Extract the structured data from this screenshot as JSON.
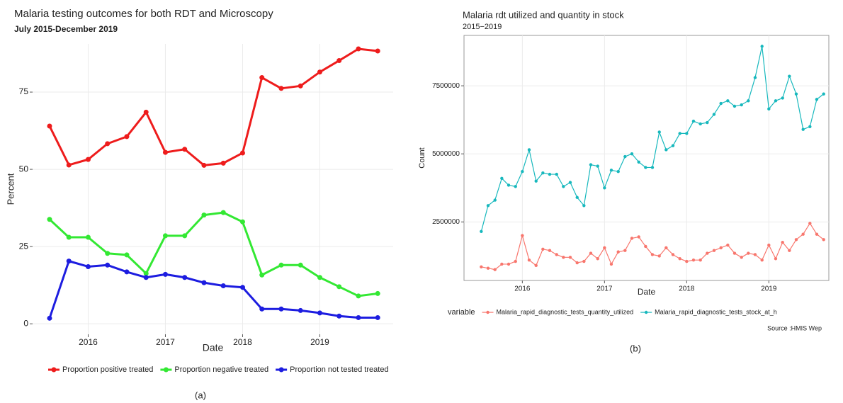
{
  "chart_data": [
    {
      "type": "line",
      "title": "Malaria testing outcomes for both RDT and Microscopy",
      "subtitle": "July 2015-December 2019",
      "xlabel": "Date",
      "ylabel": "Percent",
      "caption": "(a)",
      "legend": "bottom",
      "grid": true,
      "x": [
        2015.5,
        2015.75,
        2016,
        2016.25,
        2016.5,
        2016.75,
        2017,
        2017.25,
        2017.5,
        2017.75,
        2018,
        2018.25,
        2018.5,
        2018.75,
        2019,
        2019.25,
        2019.5,
        2019.75
      ],
      "xlim": [
        2015.28,
        2019.95
      ],
      "xticks": [
        2016,
        2017,
        2018,
        2019
      ],
      "ylim": [
        -3.4,
        90.6
      ],
      "yticks": [
        0,
        25,
        50,
        75
      ],
      "series": [
        {
          "name": "Proportion positive treated",
          "color": "#ee1c1c",
          "values": [
            64,
            51.4,
            53.2,
            58.3,
            60.6,
            68.5,
            55.5,
            56.5,
            51.3,
            52,
            55.3,
            79.7,
            76.2,
            77,
            81.5,
            85.2,
            89,
            88.3
          ]
        },
        {
          "name": "Proportion negative treated",
          "color": "#33e833",
          "values": [
            33.8,
            28,
            28,
            22.8,
            22.3,
            16.3,
            28.5,
            28.5,
            35.2,
            36,
            33,
            15.8,
            19,
            19,
            15,
            12,
            9,
            9.8
          ]
        },
        {
          "name": "Proportion not tested treated",
          "color": "#1d1de0",
          "values": [
            1.8,
            20.3,
            18.5,
            19,
            16.8,
            15,
            16,
            15,
            13.3,
            12.3,
            11.8,
            4.8,
            4.8,
            4.3,
            3.5,
            2.5,
            2,
            2
          ]
        }
      ]
    },
    {
      "type": "line",
      "title": "Malaria rdt utilized and quantity in stock",
      "subtitle": "2015−2019",
      "xlabel": "Date",
      "ylabel": "Count",
      "caption": "(b)",
      "source": "Source :HMIS Wep",
      "legend": "bottom",
      "legend_title": "variable",
      "grid": true,
      "x": [
        2015.5,
        2015.583,
        2015.667,
        2015.75,
        2015.833,
        2015.917,
        2016,
        2016.083,
        2016.167,
        2016.25,
        2016.333,
        2016.417,
        2016.5,
        2016.583,
        2016.667,
        2016.75,
        2016.833,
        2016.917,
        2017,
        2017.083,
        2017.167,
        2017.25,
        2017.333,
        2017.417,
        2017.5,
        2017.583,
        2017.667,
        2017.75,
        2017.833,
        2017.917,
        2018,
        2018.083,
        2018.167,
        2018.25,
        2018.333,
        2018.417,
        2018.5,
        2018.583,
        2018.667,
        2018.75,
        2018.833,
        2018.917,
        2019,
        2019.083,
        2019.167,
        2019.25,
        2019.333,
        2019.417,
        2019.5,
        2019.583,
        2019.667
      ],
      "xlim": [
        2015.29,
        2019.73
      ],
      "xticks": [
        2016,
        2017,
        2018,
        2019
      ],
      "ylim": [
        350000,
        9350000
      ],
      "yticks": [
        2500000,
        5000000,
        7500000
      ],
      "series": [
        {
          "name": "Malaria_rapid_diagnostic_tests_quantity_utilized",
          "color": "#f8766d",
          "values": [
            850000,
            800000,
            750000,
            950000,
            950000,
            1050000,
            2000000,
            1100000,
            900000,
            1500000,
            1450000,
            1300000,
            1200000,
            1200000,
            1000000,
            1050000,
            1350000,
            1150000,
            1550000,
            950000,
            1400000,
            1450000,
            1900000,
            1950000,
            1600000,
            1300000,
            1250000,
            1550000,
            1300000,
            1150000,
            1050000,
            1100000,
            1100000,
            1350000,
            1450000,
            1550000,
            1650000,
            1350000,
            1200000,
            1350000,
            1300000,
            1100000,
            1650000,
            1150000,
            1750000,
            1450000,
            1850000,
            2050000,
            2450000,
            2050000,
            1850000
          ]
        },
        {
          "name": "Malaria_rapid_diagnostic_tests_stock_at_h",
          "color": "#17b8bd",
          "values": [
            2150000,
            3100000,
            3300000,
            4100000,
            3850000,
            3800000,
            4350000,
            5150000,
            4000000,
            4300000,
            4250000,
            4250000,
            3800000,
            3950000,
            3400000,
            3100000,
            4600000,
            4550000,
            3750000,
            4400000,
            4350000,
            4900000,
            5000000,
            4700000,
            4500000,
            4500000,
            5800000,
            5150000,
            5300000,
            5750000,
            5750000,
            6200000,
            6100000,
            6150000,
            6450000,
            6850000,
            6950000,
            6750000,
            6800000,
            6950000,
            7800000,
            8950000,
            6650000,
            6950000,
            7050000,
            7850000,
            7200000,
            5900000,
            6000000,
            7000000,
            7200000
          ]
        }
      ]
    }
  ]
}
